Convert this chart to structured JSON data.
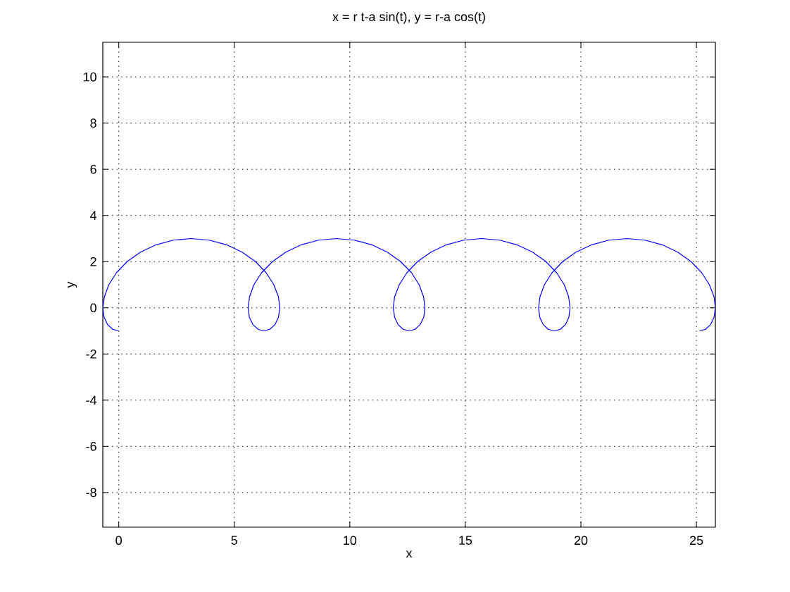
{
  "chart_data": {
    "type": "line",
    "title": "x = r t-a sin(t), y = r-a cos(t)",
    "xlabel": "x",
    "ylabel": "y",
    "x": [
      0,
      -0.26,
      -0.48,
      -0.63,
      -0.69,
      -0.62,
      -0.43,
      -0.1,
      0.36,
      0.94,
      1.62,
      2.36,
      3.14,
      3.92,
      4.67,
      5.34,
      5.92,
      6.38,
      6.71,
      6.91,
      6.97,
      6.91,
      6.76,
      6.54,
      6.28,
      6.03,
      5.81,
      5.65,
      5.6,
      5.66,
      5.85,
      6.18,
      6.65,
      7.23,
      7.9,
      8.65,
      9.42,
      10.2,
      10.95,
      11.62,
      12.2,
      12.67,
      13.0,
      13.19,
      13.25,
      13.2,
      13.04,
      12.82,
      12.57,
      12.31,
      12.09,
      11.94,
      11.88,
      11.94,
      12.14,
      12.47,
      12.93,
      13.51,
      14.18,
      14.93,
      15.71,
      16.49,
      17.23,
      17.91,
      18.49,
      18.95,
      19.28,
      19.47,
      19.53,
      19.48,
      19.33,
      19.11,
      18.85,
      18.59,
      18.37,
      18.22,
      18.17,
      18.23,
      18.42,
      18.75,
      19.21,
      19.79,
      20.47,
      21.21,
      21.99,
      22.77,
      23.52,
      24.19,
      24.77,
      25.23,
      25.56,
      25.76,
      25.82,
      25.76,
      25.61,
      25.39,
      25.13
    ],
    "values": [
      -1,
      -0.93,
      -0.73,
      -0.41,
      0,
      0.48,
      1,
      1.52,
      2,
      2.41,
      2.73,
      2.93,
      3,
      2.93,
      2.73,
      2.41,
      2,
      1.52,
      1,
      0.48,
      0,
      -0.41,
      -0.73,
      -0.93,
      -1,
      -0.93,
      -0.73,
      -0.41,
      0,
      0.48,
      1,
      1.52,
      2,
      2.41,
      2.73,
      2.93,
      3,
      2.93,
      2.73,
      2.41,
      2,
      1.52,
      1,
      0.48,
      0,
      -0.41,
      -0.73,
      -0.93,
      -1,
      -0.93,
      -0.73,
      -0.41,
      0,
      0.48,
      1,
      1.52,
      2,
      2.41,
      2.73,
      2.93,
      3,
      2.93,
      2.73,
      2.41,
      2,
      1.52,
      1,
      0.48,
      0,
      -0.41,
      -0.73,
      -0.93,
      -1,
      -0.93,
      -0.73,
      -0.41,
      0,
      0.48,
      1,
      1.52,
      2,
      2.41,
      2.73,
      2.93,
      3,
      2.93,
      2.73,
      2.41,
      2,
      1.52,
      1,
      0.48,
      0,
      -0.41,
      -0.73,
      -0.93,
      -1
    ],
    "color": "#0000ff",
    "line_style": "solid",
    "xlim": [
      -0.69,
      25.82
    ],
    "ylim": [
      -9.5,
      11.5
    ],
    "xticks": [
      0,
      5,
      10,
      15,
      20,
      25
    ],
    "yticks": [
      -8,
      -6,
      -4,
      -2,
      0,
      2,
      4,
      6,
      8,
      10
    ],
    "grid": true
  }
}
